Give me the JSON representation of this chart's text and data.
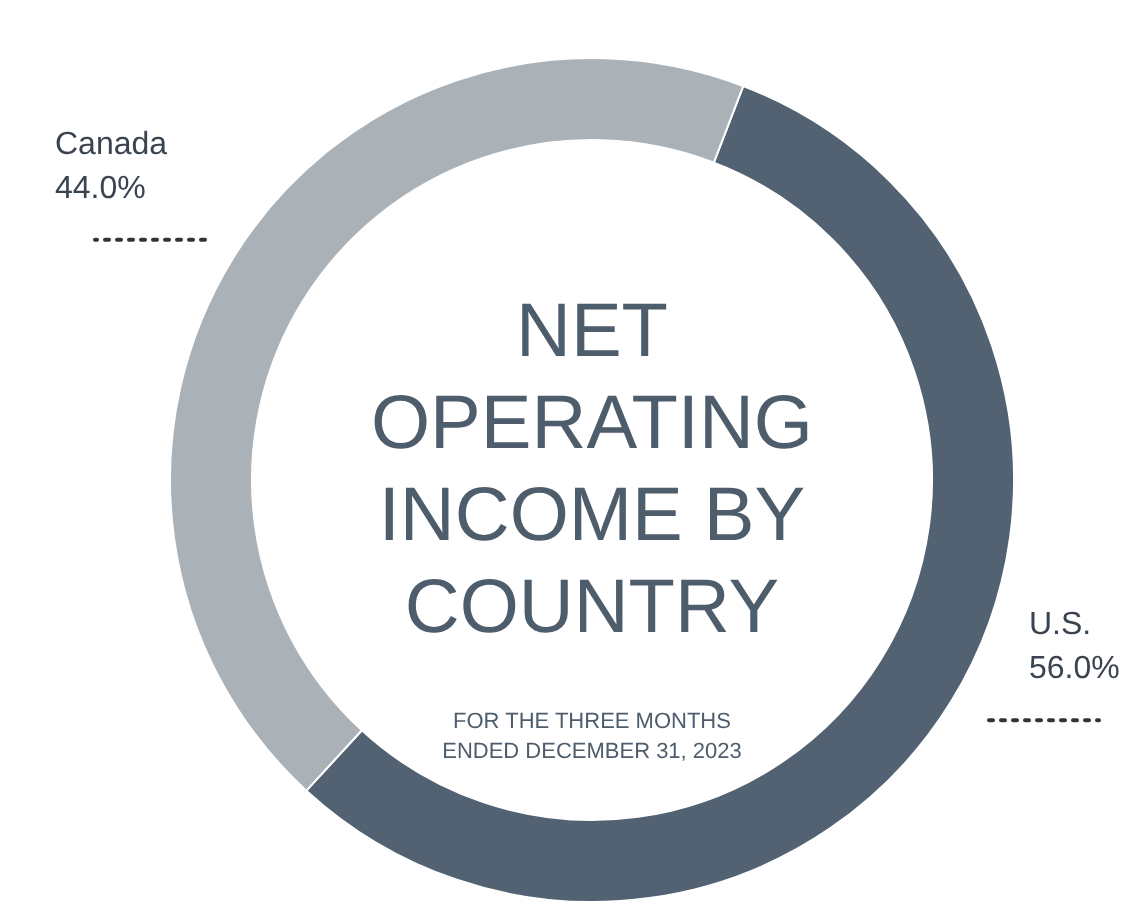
{
  "chart_data": {
    "type": "donut",
    "title": "NET OPERATING INCOME BY COUNTRY",
    "subtitle": "FOR THE THREE MONTHS ENDED DECEMBER 31, 2023",
    "categories": [
      "U.S.",
      "Canada"
    ],
    "values": [
      56.0,
      44.0
    ],
    "value_labels": [
      "56.0%",
      "44.0%"
    ],
    "colors": [
      "#526272",
      "#aab1b7"
    ]
  }
}
